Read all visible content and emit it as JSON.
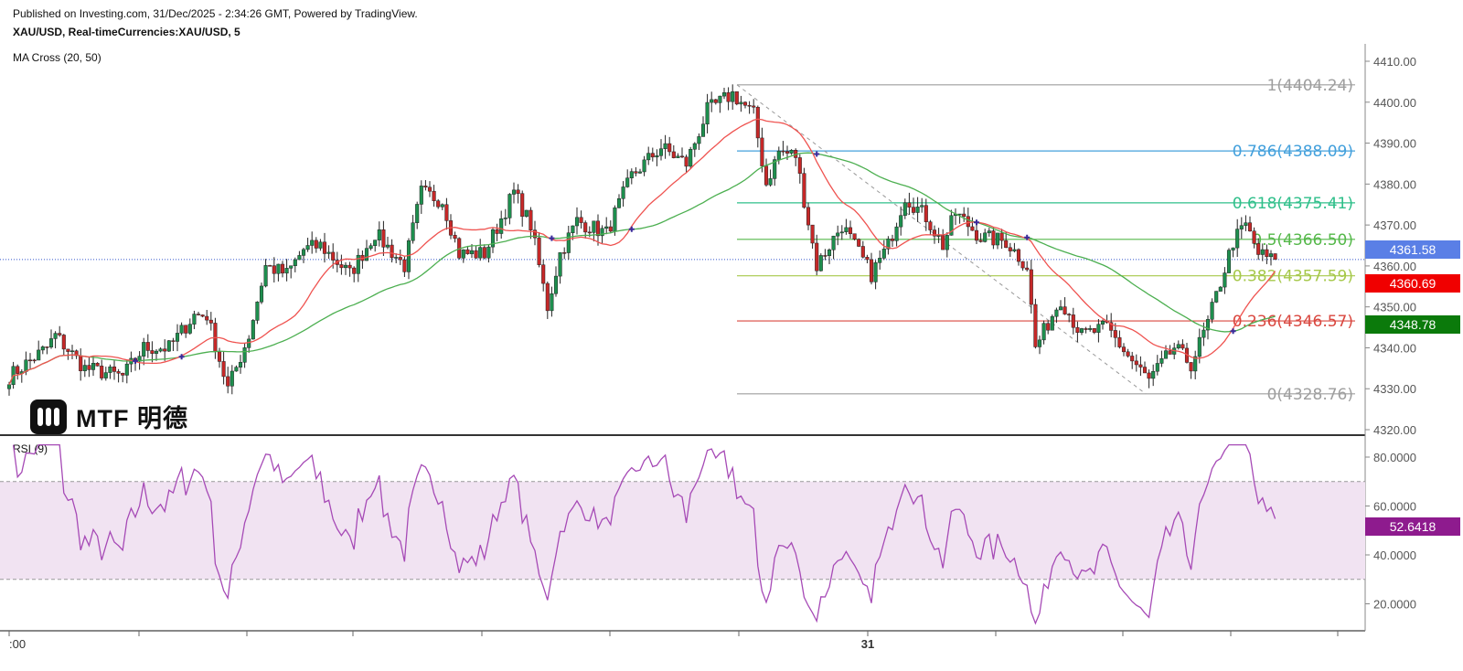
{
  "header": {
    "published": "Published on Investing.com, 31/Dec/2025 - 2:34:26 GMT, Powered by TradingView.",
    "symbol": "XAU/USD, Real-timeCurrencies:XAU/USD, 5",
    "indicator": "MA Cross (20, 50)",
    "rsi_label": "RSI (9)"
  },
  "logo": {
    "text": "MTF 明德"
  },
  "chart_data": [
    {
      "type": "candlestick",
      "title": "XAU/USD, Real-timeCurrencies:XAU/USD, 5",
      "ylim": [
        4318,
        4413
      ],
      "yticks": [
        "4410.00",
        "4400.00",
        "4390.00",
        "4380.00",
        "4370.00",
        "4360.00",
        "4350.00",
        "4340.00",
        "4330.00",
        "4320.00"
      ],
      "xtick_labels": [
        ":00",
        "",
        "",
        "",
        "",
        "",
        "",
        "31",
        "",
        "",
        "",
        ""
      ],
      "grid": false,
      "close_path_bar_price": [
        [
          0,
          4333
        ],
        [
          9,
          4340
        ],
        [
          11,
          4343
        ],
        [
          18,
          4335
        ],
        [
          27,
          4333
        ],
        [
          32,
          4340
        ],
        [
          38,
          4340
        ],
        [
          44,
          4348
        ],
        [
          47,
          4348
        ],
        [
          52,
          4330
        ],
        [
          57,
          4343
        ],
        [
          61,
          4360
        ],
        [
          66,
          4358
        ],
        [
          70,
          4364
        ],
        [
          74,
          4365
        ],
        [
          81,
          4358
        ],
        [
          87,
          4368
        ],
        [
          94,
          4360
        ],
        [
          98,
          4378
        ],
        [
          103,
          4376
        ],
        [
          107,
          4363
        ],
        [
          113,
          4363
        ],
        [
          120,
          4378
        ],
        [
          124,
          4370
        ],
        [
          128,
          4350
        ],
        [
          131,
          4363
        ],
        [
          135,
          4371
        ],
        [
          142,
          4368
        ],
        [
          148,
          4382
        ],
        [
          155,
          4389
        ],
        [
          161,
          4385
        ],
        [
          166,
          4398
        ],
        [
          172,
          4402
        ],
        [
          177,
          4397
        ],
        [
          180,
          4380
        ],
        [
          183,
          4388
        ],
        [
          187,
          4387
        ],
        [
          192,
          4360
        ],
        [
          198,
          4370
        ],
        [
          205,
          4358
        ],
        [
          209,
          4365
        ],
        [
          213,
          4377
        ],
        [
          218,
          4372
        ],
        [
          222,
          4365
        ],
        [
          225,
          4373
        ],
        [
          231,
          4367
        ],
        [
          237,
          4366
        ],
        [
          242,
          4360
        ],
        [
          244,
          4340
        ],
        [
          250,
          4352
        ],
        [
          255,
          4343
        ],
        [
          261,
          4345
        ],
        [
          266,
          4338
        ],
        [
          271,
          4332
        ],
        [
          277,
          4340
        ],
        [
          281,
          4336
        ],
        [
          285,
          4346
        ],
        [
          291,
          4366
        ],
        [
          294,
          4370
        ],
        [
          297,
          4363
        ],
        [
          301,
          4361
        ]
      ],
      "ma_periods": [
        20,
        50
      ],
      "ma_colors": {
        "fast": "#ef5350",
        "slow": "#4caf50"
      },
      "candle_colors": {
        "up": "#1e8f4e",
        "down": "#c62828"
      },
      "fibonacci": [
        {
          "ratio": "1",
          "price": 4404.24,
          "label": "1(4404.24)",
          "color": "#9e9e9e"
        },
        {
          "ratio": "0.786",
          "price": 4388.09,
          "label": "0.786(4388.09)",
          "color": "#43a0dc"
        },
        {
          "ratio": "0.618",
          "price": 4375.41,
          "label": "0.618(4375.41)",
          "color": "#2fbf8a"
        },
        {
          "ratio": "0.5",
          "price": 4366.5,
          "label": "0.5(4366.50)",
          "color": "#55b84a"
        },
        {
          "ratio": "0.382",
          "price": 4357.59,
          "label": "0.382(4357.59)",
          "color": "#a6c84a"
        },
        {
          "ratio": "0.236",
          "price": 4346.57,
          "label": "0.236(4346.57)",
          "color": "#d9473f"
        },
        {
          "ratio": "0",
          "price": 4328.76,
          "label": "0(4328.76)",
          "color": "#9e9e9e"
        }
      ],
      "price_labels": [
        {
          "value": "4361.58",
          "color": "#5a7fe6"
        },
        {
          "value": "4360.69",
          "color": "#f00000"
        },
        {
          "value": "4348.78",
          "color": "#0b7a0b"
        }
      ],
      "last_price": 4361.58
    },
    {
      "type": "line",
      "title": "RSI (9)",
      "period": 9,
      "ylim": [
        10,
        88
      ],
      "yticks": [
        "80.0000",
        "60.0000",
        "40.0000",
        "20.0000"
      ],
      "band": [
        30,
        70
      ],
      "line_color": "#a64ab6",
      "band_color": "#f1e3f2",
      "last_value": "52.6418",
      "last_value_color": "#8e1b8e"
    }
  ]
}
